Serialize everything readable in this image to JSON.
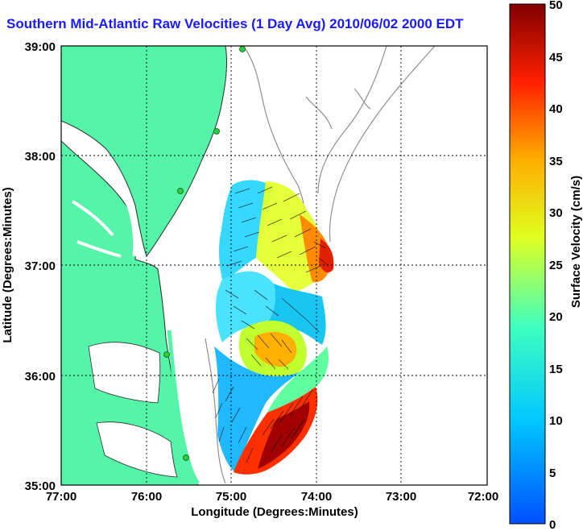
{
  "chart_data": {
    "type": "map",
    "title": "Southern Mid-Atlantic Raw Velocities (1 Day Avg) 2010/06/02 2000 EDT",
    "xlabel": "Longitude (Degrees:Minutes)",
    "ylabel": "Latitude (Degrees:Minutes)",
    "xlim": [
      -77,
      -72
    ],
    "ylim": [
      35,
      39
    ],
    "x_ticks": [
      "77:00",
      "76:00",
      "75:00",
      "74:00",
      "73:00",
      "72:00"
    ],
    "y_ticks": [
      "39:00",
      "38:00",
      "37:00",
      "36:00",
      "35:00"
    ],
    "grid": true,
    "colorbar": {
      "label": "Surface Velocity (cm/s)",
      "range": [
        0,
        50
      ],
      "ticks": [
        "0",
        "5",
        "10",
        "15",
        "20",
        "25",
        "30",
        "35",
        "40",
        "45",
        "50"
      ],
      "colormap": "jet"
    },
    "colors": {
      "land": "#54f5a8",
      "coastline": "#2a2a2a",
      "bathymetry": "#8f8f8f",
      "site_marker": "#2ecc40",
      "title": "#1a1aff"
    }
  }
}
